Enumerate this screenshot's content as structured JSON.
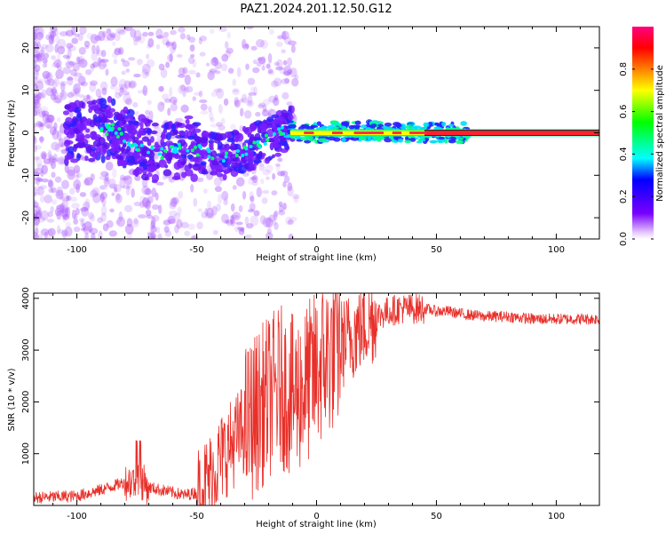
{
  "title": "PAZ1.2024.201.12.50.G12",
  "chart_data": [
    {
      "type": "heatmap",
      "xlabel": "Height of straight line (km)",
      "ylabel": "Frequency (Hz)",
      "xlim": [
        -118,
        118
      ],
      "ylim": [
        -25,
        25
      ],
      "xticks": [
        -100,
        -50,
        0,
        50,
        100
      ],
      "yticks": [
        -20,
        -10,
        0,
        10,
        20
      ],
      "colorbar": {
        "label": "Normalized spectral amplitude",
        "range": [
          0,
          1
        ],
        "ticks": [
          "0.0",
          "0.2",
          "0.4",
          "0.6",
          "0.8"
        ],
        "tick_values": [
          0,
          0.2,
          0.4,
          0.6,
          0.8
        ]
      },
      "ridge": {
        "description_points_x": [
          -100,
          -85,
          -75,
          -65,
          -55,
          -45,
          -38,
          -30,
          -25,
          -20,
          -15,
          -12,
          -5,
          0,
          10,
          20,
          30,
          40,
          50,
          120
        ],
        "description_points_y": [
          0,
          1,
          -3,
          -5,
          -3,
          -5,
          -5.5,
          -4,
          -3,
          -1.5,
          0,
          1,
          0,
          0,
          0.5,
          0.5,
          0.3,
          0,
          0,
          0
        ]
      }
    },
    {
      "type": "line",
      "xlabel": "Height of straight line (km)",
      "ylabel": "SNR (10 * v/v)",
      "xlim": [
        -118,
        118
      ],
      "ylim": [
        0,
        4100
      ],
      "xticks": [
        -100,
        -50,
        0,
        50,
        100
      ],
      "yticks": [
        1000,
        2000,
        3000,
        4000
      ],
      "color": "#e8302a",
      "envelope_x": [
        -118,
        -100,
        -90,
        -80,
        -74,
        -70,
        -60,
        -55,
        -50,
        -45,
        -40,
        -35,
        -30,
        -25,
        -20,
        -15,
        -10,
        -5,
        0,
        5,
        10,
        15,
        20,
        25,
        30,
        35,
        40,
        45,
        50,
        55,
        60,
        70,
        80,
        90,
        100,
        110,
        118
      ],
      "envelope_y": [
        150,
        180,
        300,
        450,
        500,
        350,
        250,
        200,
        250,
        500,
        900,
        1200,
        1500,
        1800,
        2100,
        2300,
        2100,
        2300,
        2600,
        2900,
        3100,
        3300,
        3500,
        3650,
        3750,
        3800,
        3800,
        3800,
        3750,
        3750,
        3700,
        3650,
        3650,
        3600,
        3600,
        3600,
        3600
      ]
    }
  ]
}
